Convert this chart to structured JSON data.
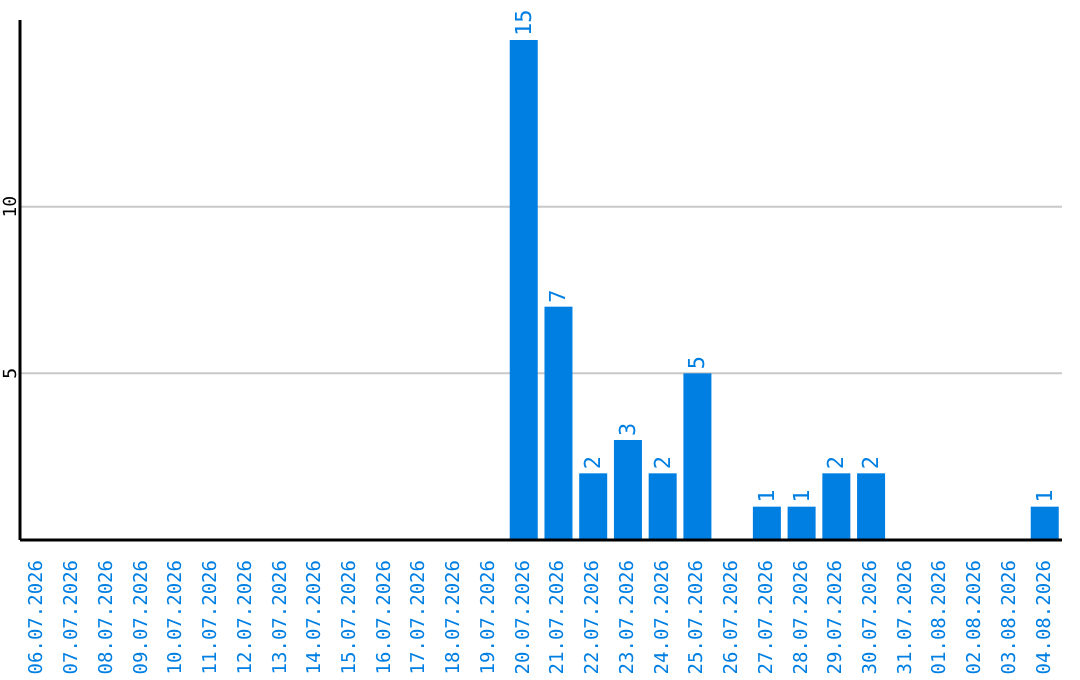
{
  "chart_data": {
    "type": "bar",
    "categories": [
      "06.07.2026",
      "07.07.2026",
      "08.07.2026",
      "09.07.2026",
      "10.07.2026",
      "11.07.2026",
      "12.07.2026",
      "13.07.2026",
      "14.07.2026",
      "15.07.2026",
      "16.07.2026",
      "17.07.2026",
      "18.07.2026",
      "19.07.2026",
      "20.07.2026",
      "21.07.2026",
      "22.07.2026",
      "23.07.2026",
      "24.07.2026",
      "25.07.2026",
      "26.07.2026",
      "27.07.2026",
      "28.07.2026",
      "29.07.2026",
      "30.07.2026",
      "31.07.2026",
      "01.08.2026",
      "02.08.2026",
      "03.08.2026",
      "04.08.2026"
    ],
    "values": [
      0,
      0,
      0,
      0,
      0,
      0,
      0,
      0,
      0,
      0,
      0,
      0,
      0,
      0,
      15,
      7,
      2,
      3,
      2,
      5,
      0,
      1,
      1,
      2,
      2,
      0,
      0,
      0,
      0,
      1
    ],
    "value_labels": [
      null,
      null,
      null,
      null,
      null,
      null,
      null,
      null,
      null,
      null,
      null,
      null,
      null,
      null,
      "15",
      "7",
      "2",
      "3",
      "2",
      "5",
      null,
      "1",
      "1",
      "2",
      "2",
      null,
      null,
      null,
      null,
      "1"
    ],
    "color": "#007fe3",
    "ylim": [
      0,
      15.6
    ],
    "yticks": [
      5,
      10
    ],
    "grid": "y"
  }
}
